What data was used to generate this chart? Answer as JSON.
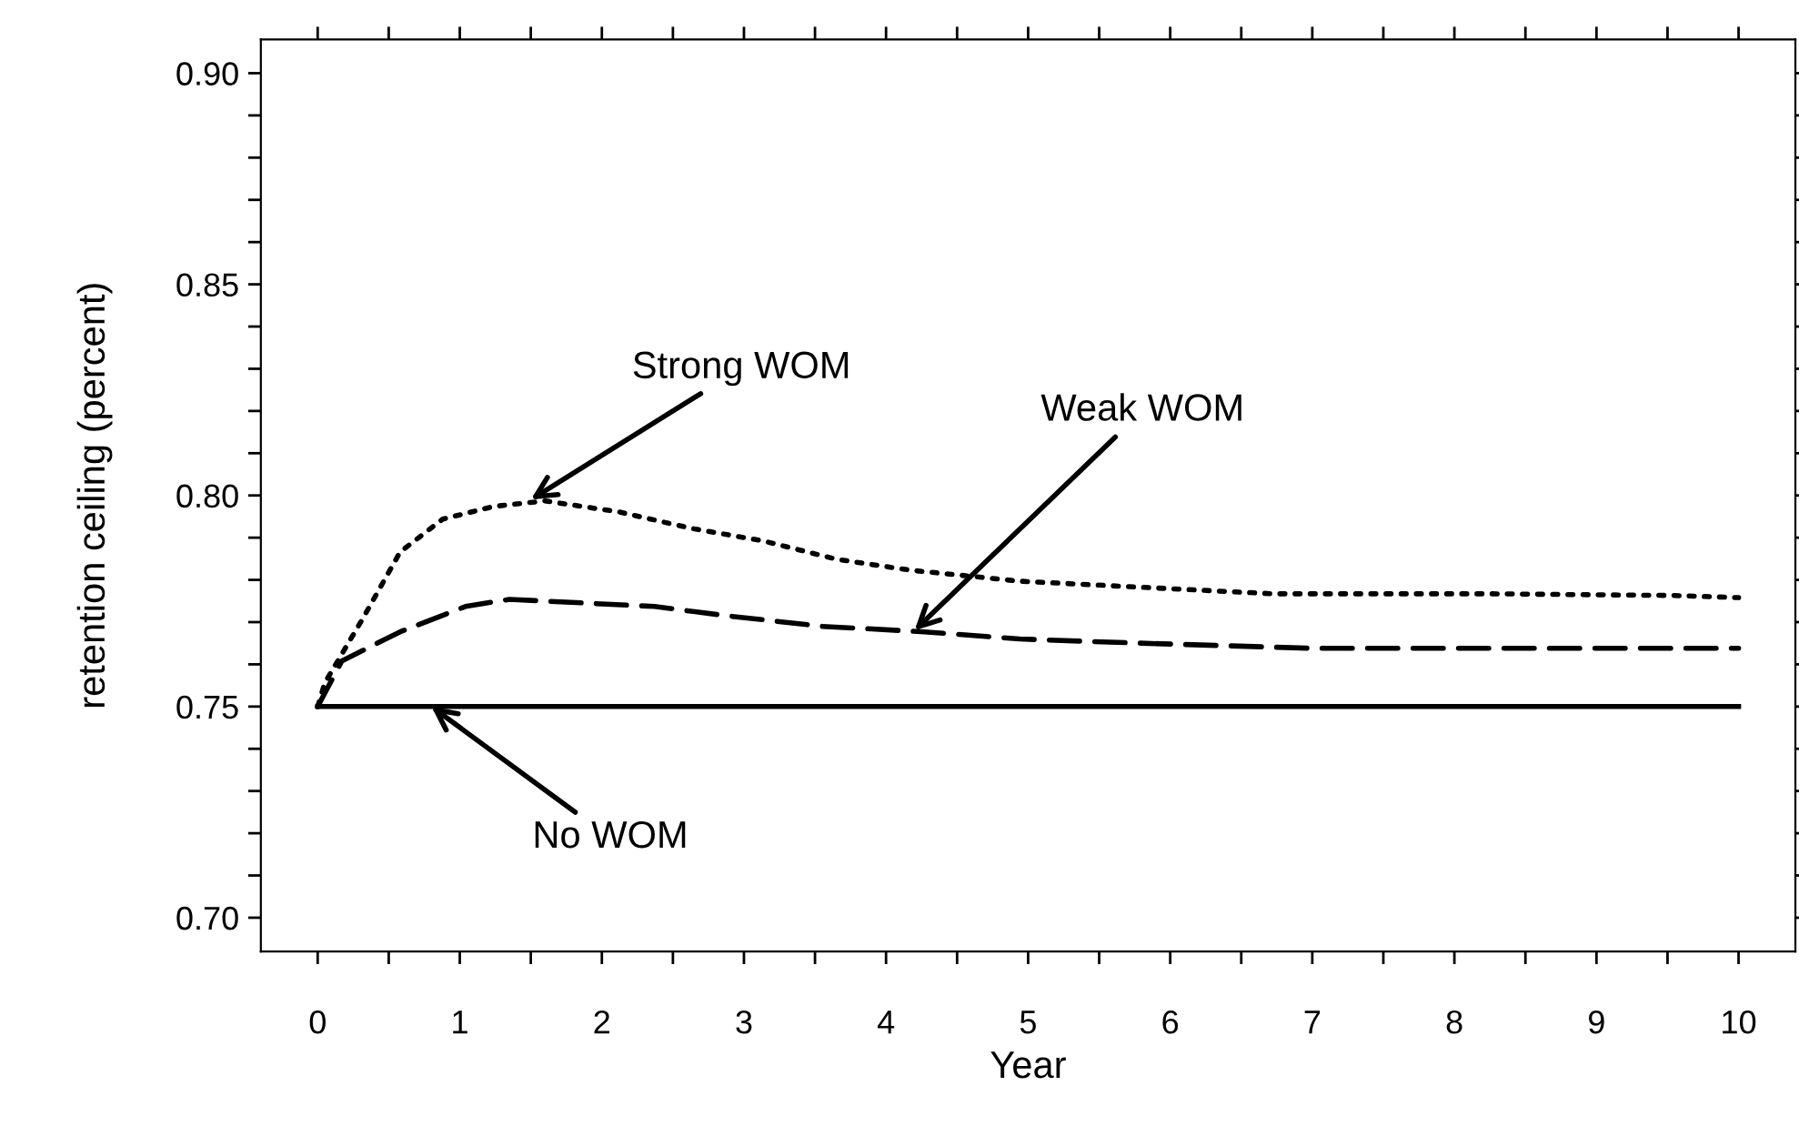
{
  "chart_data": {
    "type": "line",
    "xlabel": "Year",
    "ylabel": "retention ceiling (percent)",
    "xlim": [
      -0.4,
      10.4
    ],
    "ylim": [
      0.692,
      0.908
    ],
    "xticks": [
      0,
      {
        "value": 0.5,
        "label": null
      },
      1,
      {
        "value": 1.5,
        "label": null
      },
      2,
      {
        "value": 2.5,
        "label": null
      },
      3,
      {
        "value": 3.5,
        "label": null
      },
      4,
      {
        "value": 4.5,
        "label": null
      },
      5,
      {
        "value": 5.5,
        "label": null
      },
      6,
      {
        "value": 6.5,
        "label": null
      },
      7,
      {
        "value": 7.5,
        "label": null
      },
      8,
      {
        "value": 8.5,
        "label": null
      },
      9,
      {
        "value": 9.5,
        "label": null
      },
      10
    ],
    "yticks": [
      {
        "value": 0.7,
        "label": "0.70"
      },
      {
        "value": 0.71,
        "label": null
      },
      {
        "value": 0.72,
        "label": null
      },
      {
        "value": 0.73,
        "label": null
      },
      {
        "value": 0.74,
        "label": null
      },
      {
        "value": 0.75,
        "label": "0.75"
      },
      {
        "value": 0.76,
        "label": null
      },
      {
        "value": 0.77,
        "label": null
      },
      {
        "value": 0.78,
        "label": null
      },
      {
        "value": 0.79,
        "label": null
      },
      {
        "value": 0.8,
        "label": "0.80"
      },
      {
        "value": 0.81,
        "label": null
      },
      {
        "value": 0.82,
        "label": null
      },
      {
        "value": 0.83,
        "label": null
      },
      {
        "value": 0.84,
        "label": null
      },
      {
        "value": 0.85,
        "label": "0.85"
      },
      {
        "value": 0.86,
        "label": null
      },
      {
        "value": 0.87,
        "label": null
      },
      {
        "value": 0.88,
        "label": null
      },
      {
        "value": 0.89,
        "label": null
      },
      {
        "value": 0.9,
        "label": "0.90"
      }
    ],
    "grid": false,
    "legend": false,
    "series": [
      {
        "color": "#000000",
        "line_style": "dotted",
        "x": [
          0,
          0.05,
          0.32,
          0.58,
          0.88,
          1.24,
          1.6,
          2.12,
          2.63,
          3.14,
          3.65,
          4.17,
          4.94,
          5.71,
          6.73,
          8.27,
          9.55,
          10
        ],
        "values": [
          0.75,
          0.7556,
          0.771,
          0.7866,
          0.7944,
          0.7974,
          0.7987,
          0.7961,
          0.7922,
          0.7892,
          0.7849,
          0.7823,
          0.7797,
          0.7784,
          0.7767,
          0.7767,
          0.7763,
          0.7758
        ]
      },
      {
        "color": "#000000",
        "line_style": "dashed",
        "x": [
          0,
          0.17,
          0.58,
          1.04,
          1.35,
          2.37,
          2.88,
          3.55,
          4.27,
          4.94,
          5.71,
          6.99,
          10
        ],
        "values": [
          0.75,
          0.7608,
          0.7677,
          0.7737,
          0.7754,
          0.7737,
          0.7715,
          0.769,
          0.7677,
          0.766,
          0.7651,
          0.7638,
          0.7638
        ]
      },
      {
        "color": "#000000",
        "line_style": "solid",
        "x": [
          0,
          10
        ],
        "values": [
          0.75,
          0.75
        ]
      }
    ],
    "annotations": [
      {
        "text": "Strong WOM",
        "x": 1.5,
        "y": 0.799
      },
      {
        "text": "Weak WOM",
        "x": 4.2,
        "y": 0.768
      },
      {
        "text": "No WOM",
        "x": 0.8,
        "y": 0.75
      }
    ]
  }
}
